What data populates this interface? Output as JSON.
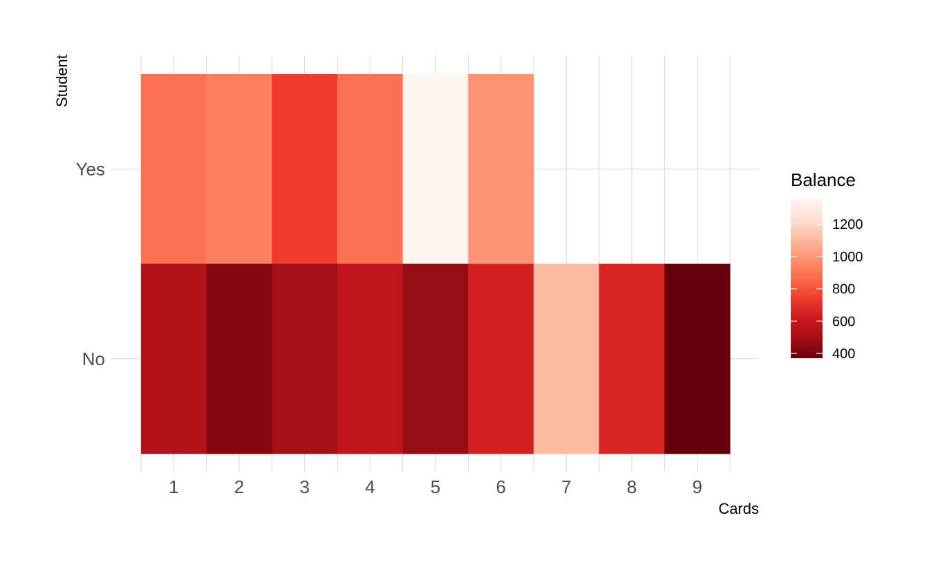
{
  "chart_data": {
    "type": "heatmap",
    "title": "",
    "xlabel": "Cards",
    "ylabel": "Student",
    "x_categories": [
      "1",
      "2",
      "3",
      "4",
      "5",
      "6",
      "7",
      "8",
      "9"
    ],
    "y_categories": [
      "No",
      "Yes"
    ],
    "cells": [
      {
        "x": "1",
        "y": "Yes",
        "value": 880
      },
      {
        "x": "2",
        "y": "Yes",
        "value": 930
      },
      {
        "x": "3",
        "y": "Yes",
        "value": 740
      },
      {
        "x": "4",
        "y": "Yes",
        "value": 885
      },
      {
        "x": "5",
        "y": "Yes",
        "value": 1355
      },
      {
        "x": "6",
        "y": "Yes",
        "value": 990
      },
      {
        "x": "1",
        "y": "No",
        "value": 540
      },
      {
        "x": "2",
        "y": "No",
        "value": 430
      },
      {
        "x": "3",
        "y": "No",
        "value": 490
      },
      {
        "x": "4",
        "y": "No",
        "value": 580
      },
      {
        "x": "5",
        "y": "No",
        "value": 465
      },
      {
        "x": "6",
        "y": "No",
        "value": 640
      },
      {
        "x": "7",
        "y": "No",
        "value": 1110
      },
      {
        "x": "8",
        "y": "No",
        "value": 660
      },
      {
        "x": "9",
        "y": "No",
        "value": 370
      }
    ],
    "legend": {
      "title": "Balance",
      "ticks": [
        400,
        600,
        800,
        1000,
        1200
      ],
      "range": [
        370,
        1355
      ],
      "placement": "right"
    },
    "color_scale": [
      "#67000d",
      "#a50f15",
      "#cb181d",
      "#ef3b2c",
      "#fb6a4a",
      "#fc9272",
      "#fcbba1",
      "#fee0d2",
      "#fff5f0"
    ],
    "grid": true
  }
}
